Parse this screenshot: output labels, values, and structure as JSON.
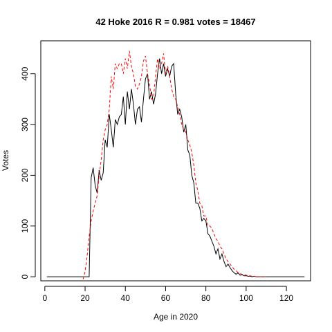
{
  "chart_data": {
    "type": "line",
    "title": "42 Hoke 2016 R = 0.981 votes = 18467",
    "xlabel": "Age in 2020",
    "ylabel": "Votes",
    "xlim": [
      -2,
      132
    ],
    "ylim": [
      -8,
      465
    ],
    "xticks": [
      0,
      20,
      40,
      60,
      80,
      100,
      120
    ],
    "yticks": [
      0,
      100,
      200,
      300,
      400
    ],
    "grid": false,
    "series": [
      {
        "style": "solid",
        "color": "#000000",
        "x": [
          1,
          2,
          3,
          4,
          5,
          6,
          7,
          8,
          9,
          10,
          11,
          12,
          13,
          14,
          15,
          16,
          17,
          18,
          19,
          20,
          21,
          22,
          23,
          24,
          25,
          26,
          27,
          28,
          29,
          30,
          31,
          32,
          33,
          34,
          35,
          36,
          37,
          38,
          39,
          40,
          41,
          42,
          43,
          44,
          45,
          46,
          47,
          48,
          49,
          50,
          51,
          52,
          53,
          54,
          55,
          56,
          57,
          58,
          59,
          60,
          61,
          62,
          63,
          64,
          65,
          66,
          67,
          68,
          69,
          70,
          71,
          72,
          73,
          74,
          75,
          76,
          77,
          78,
          79,
          80,
          81,
          82,
          83,
          84,
          85,
          86,
          87,
          88,
          89,
          90,
          91,
          92,
          93,
          94,
          95,
          96,
          97,
          98,
          99,
          100,
          101,
          102,
          103,
          104,
          105,
          106,
          107,
          108,
          109,
          110,
          111,
          112,
          113,
          114,
          115,
          116,
          117,
          118,
          119,
          120,
          121,
          122,
          123,
          124,
          125,
          126,
          127,
          128,
          129
        ],
        "values": [
          0,
          0,
          0,
          0,
          0,
          0,
          0,
          0,
          0,
          0,
          0,
          0,
          0,
          0,
          0,
          0,
          0,
          0,
          0,
          0,
          0,
          0,
          195,
          215,
          180,
          165,
          210,
          190,
          205,
          270,
          255,
          320,
          290,
          255,
          310,
          300,
          315,
          320,
          355,
          300,
          365,
          330,
          370,
          340,
          300,
          330,
          335,
          305,
          350,
          390,
          400,
          350,
          365,
          340,
          360,
          400,
          430,
          400,
          420,
          395,
          410,
          395,
          415,
          420,
          360,
          320,
          330,
          315,
          285,
          300,
          250,
          240,
          200,
          185,
          145,
          145,
          135,
          110,
          115,
          110,
          85,
          80,
          70,
          60,
          45,
          55,
          35,
          45,
          30,
          20,
          25,
          18,
          12,
          8,
          5,
          8,
          3,
          4,
          2,
          2,
          1,
          1,
          0,
          1,
          0,
          0,
          0,
          0,
          0,
          0,
          0,
          0,
          0,
          0,
          0,
          0,
          0,
          0,
          0,
          0,
          0,
          0,
          0,
          0,
          0,
          0,
          0,
          0,
          0
        ]
      },
      {
        "style": "dashed",
        "color": "#ff0000",
        "x": [
          19,
          20,
          21,
          22,
          23,
          24,
          25,
          26,
          27,
          28,
          29,
          30,
          31,
          32,
          33,
          34,
          35,
          36,
          37,
          38,
          39,
          40,
          41,
          42,
          43,
          44,
          45,
          46,
          47,
          48,
          49,
          50,
          51,
          52,
          53,
          54,
          55,
          56,
          57,
          58,
          59,
          60,
          61,
          62,
          63,
          64,
          65,
          66,
          67,
          68,
          69,
          70,
          71,
          72,
          73,
          74,
          75,
          76,
          77,
          78,
          79,
          80,
          81,
          82,
          83,
          84,
          85,
          86,
          87,
          88,
          89,
          90,
          91,
          92,
          93,
          94,
          95,
          96,
          97,
          98,
          99,
          100,
          101,
          102,
          103,
          104,
          105,
          106,
          107,
          108,
          109,
          110
        ],
        "values": [
          -5,
          10,
          40,
          80,
          110,
          130,
          145,
          160,
          200,
          230,
          270,
          290,
          300,
          330,
          395,
          370,
          420,
          410,
          420,
          420,
          400,
          430,
          410,
          445,
          415,
          400,
          375,
          370,
          380,
          395,
          425,
          435,
          400,
          380,
          350,
          355,
          395,
          430,
          410,
          420,
          440,
          400,
          415,
          395,
          370,
          355,
          350,
          335,
          320,
          300,
          290,
          285,
          270,
          260,
          245,
          220,
          185,
          170,
          145,
          140,
          120,
          120,
          100,
          100,
          95,
          85,
          75,
          70,
          60,
          55,
          45,
          35,
          30,
          25,
          20,
          15,
          12,
          8,
          6,
          5,
          4,
          3,
          2,
          2,
          1,
          1,
          0,
          0,
          0,
          0,
          0,
          0
        ]
      }
    ]
  }
}
